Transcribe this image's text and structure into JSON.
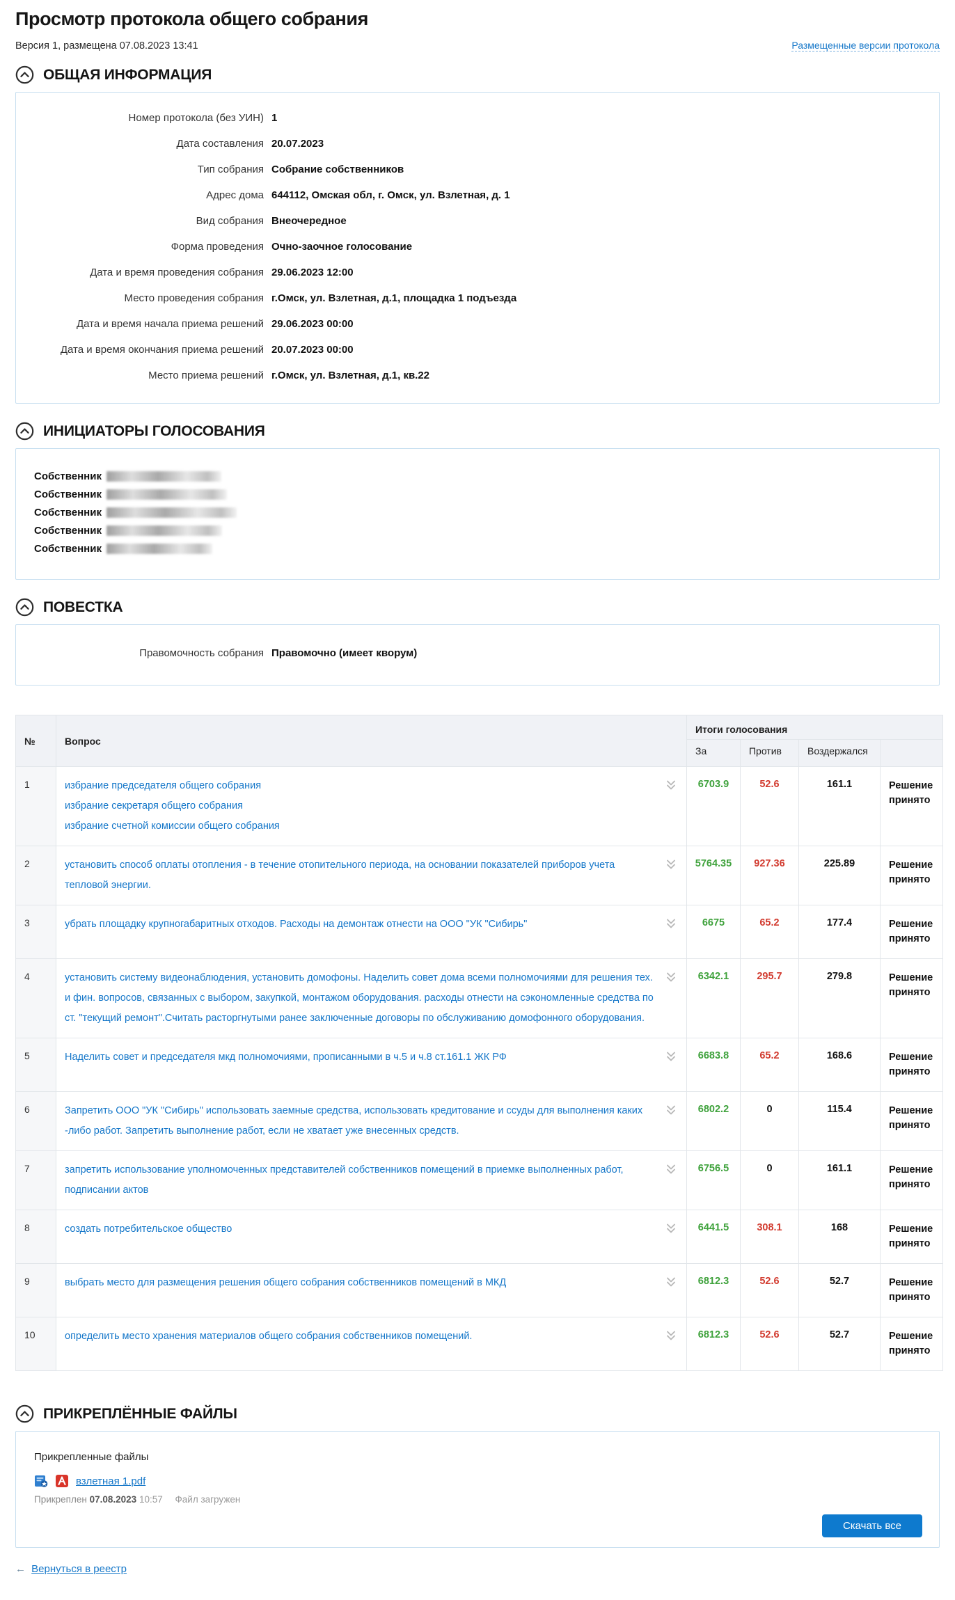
{
  "page": {
    "title": "Просмотр протокола общего собрания",
    "version_line": "Версия 1, размещена 07.08.2023 13:41",
    "versions_link": "Размещенные версии протокола",
    "back_arrow": "←",
    "back_link": "Вернуться в реестр"
  },
  "colors": {
    "link_blue": "#1577c9",
    "button_blue": "#0e7ace",
    "vote_for_green": "#3fa23c",
    "vote_against_red": "#d23b2f",
    "panel_border": "#c7dff0",
    "table_header_bg": "#f0f2f6"
  },
  "icons": {
    "collapse": "chevron-up-in-circle",
    "expand_row": "double-chevron-down",
    "signature": "blue-certificate-with-star",
    "pdf": "red-adobe-pdf"
  },
  "general": {
    "title": "ОБЩАЯ ИНФОРМАЦИЯ",
    "fields": [
      {
        "label": "Номер протокола (без УИН)",
        "value": "1"
      },
      {
        "label": "Дата составления",
        "value": "20.07.2023"
      },
      {
        "label": "Тип собрания",
        "value": "Собрание собственников"
      },
      {
        "label": "Адрес дома",
        "value": "644112, Омская обл, г. Омск, ул. Взлетная, д. 1"
      },
      {
        "label": "Вид собрания",
        "value": "Внеочередное"
      },
      {
        "label": "Форма проведения",
        "value": "Очно-заочное голосование"
      },
      {
        "label": "Дата и время проведения собрания",
        "value": "29.06.2023 12:00"
      },
      {
        "label": "Место проведения собрания",
        "value": "г.Омск, ул. Взлетная, д.1, площадка 1 подъезда"
      },
      {
        "label": "Дата и время начала приема решений",
        "value": "29.06.2023 00:00"
      },
      {
        "label": "Дата и время окончания приема решений",
        "value": "20.07.2023 00:00"
      },
      {
        "label": "Место приема решений",
        "value": "г.Омск, ул. Взлетная, д.1, кв.22"
      }
    ]
  },
  "initiators": {
    "title": "ИНИЦИАТОРЫ ГОЛОСОВАНИЯ",
    "rows": [
      {
        "label": "Собственник",
        "name_redacted": true
      },
      {
        "label": "Собственник",
        "name_redacted": true
      },
      {
        "label": "Собственник",
        "name_redacted": true
      },
      {
        "label": "Собственник",
        "name_redacted": true
      },
      {
        "label": "Собственник",
        "name_redacted": true
      }
    ]
  },
  "agenda": {
    "title": "ПОВЕСТКА",
    "quorum": {
      "label": "Правомочность собрания",
      "value": "Правомочно (имеет кворум)"
    },
    "table": {
      "headers": {
        "num": "№",
        "question": "Вопрос",
        "results_group": "Итоги голосования",
        "vote_for": "За",
        "vote_against": "Против",
        "vote_abstain": "Воздержался"
      },
      "rows": [
        {
          "num": "1",
          "lines": [
            "избрание председателя общего собрания",
            "избрание секретаря общего собрания",
            "избрание счетной комиссии общего собрания"
          ],
          "vote_for": "6703.9",
          "vote_against": "52.6",
          "vote_abstain": "161.1",
          "decision": "Решение принято"
        },
        {
          "num": "2",
          "lines": [
            "установить способ оплаты отопления - в течение отопительного периода, на основании показателей приборов учета тепловой энергии."
          ],
          "vote_for": "5764.35",
          "vote_against": "927.36",
          "vote_abstain": "225.89",
          "decision": "Решение принято"
        },
        {
          "num": "3",
          "lines": [
            "убрать площадку крупногабаритных отходов. Расходы на демонтаж отнести на ООО \"УК \"Сибирь\""
          ],
          "vote_for": "6675",
          "vote_against": "65.2",
          "vote_abstain": "177.4",
          "decision": "Решение принято"
        },
        {
          "num": "4",
          "lines": [
            "установить систему видеонаблюдения, установить домофоны. Наделить совет дома всеми полномочиями для решения тех. и фин. вопросов, связанных с выбором, закупкой, монтажом оборудования. расходы отнести на сэкономленные средства по ст. \"текущий ремонт\".Считать расторгнутыми ранее заключенные договоры по обслуживанию домофонного оборудования."
          ],
          "vote_for": "6342.1",
          "vote_against": "295.7",
          "vote_abstain": "279.8",
          "decision": "Решение принято"
        },
        {
          "num": "5",
          "lines": [
            "Наделить совет и председателя мкд полномочиями, прописанными в ч.5 и ч.8 ст.161.1 ЖК РФ"
          ],
          "vote_for": "6683.8",
          "vote_against": "65.2",
          "vote_abstain": "168.6",
          "decision": "Решение принято"
        },
        {
          "num": "6",
          "lines": [
            "Запретить ООО \"УК \"Сибирь\" использовать заемные средства, использовать кредитование и ссуды для выполнения каких -либо работ. Запретить выполнение работ, если не хватает уже внесенных средств."
          ],
          "vote_for": "6802.2",
          "vote_against": "0",
          "vote_abstain": "115.4",
          "decision": "Решение принято"
        },
        {
          "num": "7",
          "lines": [
            "запретить использование уполномоченных представителей собственников помещений в приемке выполненных работ, подписании актов"
          ],
          "vote_for": "6756.5",
          "vote_against": "0",
          "vote_abstain": "161.1",
          "decision": "Решение принято"
        },
        {
          "num": "8",
          "lines": [
            "создать потребительское общество"
          ],
          "vote_for": "6441.5",
          "vote_against": "308.1",
          "vote_abstain": "168",
          "decision": "Решение принято"
        },
        {
          "num": "9",
          "lines": [
            "выбрать место для размещения решения общего собрания собственников помещений в МКД"
          ],
          "vote_for": "6812.3",
          "vote_against": "52.6",
          "vote_abstain": "52.7",
          "decision": "Решение принято"
        },
        {
          "num": "10",
          "lines": [
            "определить место хранения материалов общего собрания собственников помещений."
          ],
          "vote_for": "6812.3",
          "vote_against": "52.6",
          "vote_abstain": "52.7",
          "decision": "Решение принято"
        }
      ]
    }
  },
  "files": {
    "title": "ПРИКРЕПЛЁННЫЕ ФАЙЛЫ",
    "box_label": "Прикрепленные файлы",
    "file_name": "взлетная 1.pdf",
    "attached_label": "Прикреплен",
    "attached_date": "07.08.2023",
    "attached_time": "10:57",
    "status": "Файл загружен",
    "download_all_label": "Скачать все"
  }
}
